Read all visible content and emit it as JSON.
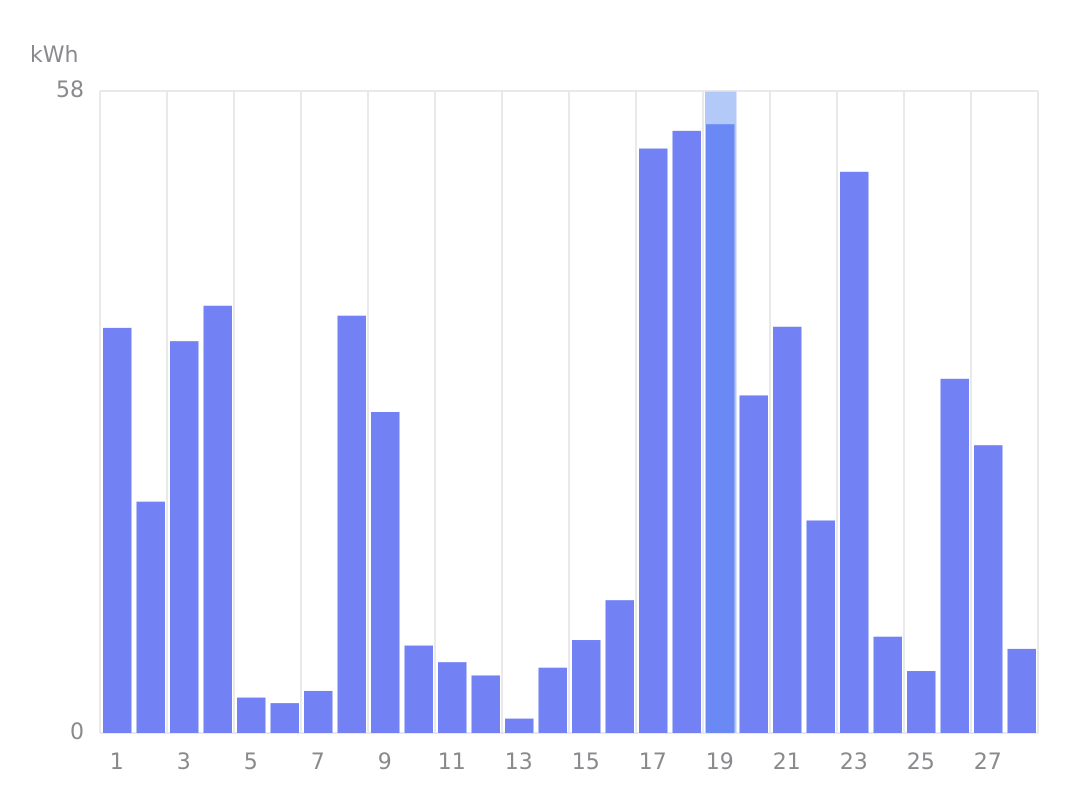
{
  "chart_data": {
    "type": "bar",
    "y_label": "kWh",
    "categories": [
      "1",
      null,
      "3",
      null,
      "5",
      null,
      "7",
      null,
      "9",
      null,
      "11",
      null,
      "13",
      null,
      "15",
      null,
      "17",
      null,
      "19",
      null,
      "21",
      null,
      "23",
      null,
      "25",
      null,
      "27",
      null
    ],
    "values": [
      36.6,
      20.9,
      35.4,
      38.6,
      3.2,
      2.7,
      3.8,
      37.7,
      29.0,
      7.9,
      6.4,
      5.2,
      1.3,
      5.9,
      8.4,
      12.0,
      52.8,
      54.4,
      55.0,
      30.5,
      36.7,
      19.2,
      50.7,
      8.7,
      5.6,
      32.0,
      26.0,
      7.6
    ],
    "color": "#7282f5",
    "highlight_index": 18,
    "highlight_color": "#6a89f5",
    "highlight_band_color": "#b3c9f7",
    "ylim": [
      0,
      58
    ],
    "yticks": [
      0,
      58
    ],
    "grid": true
  }
}
